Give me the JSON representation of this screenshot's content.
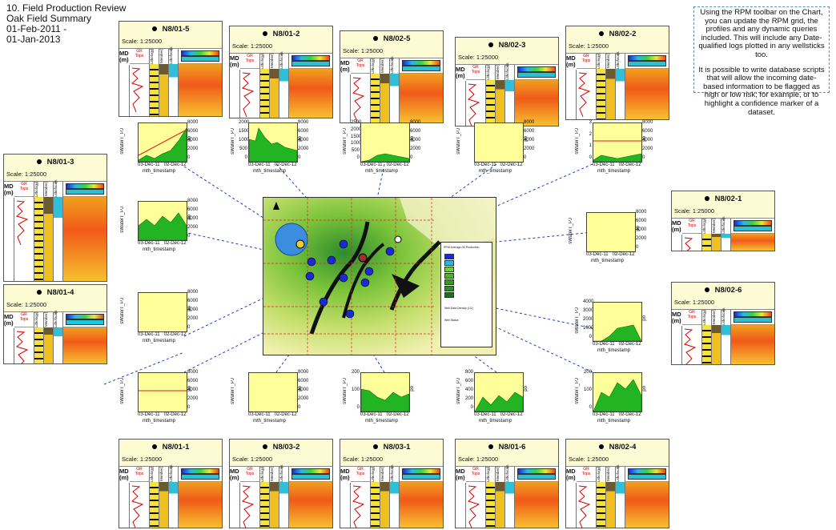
{
  "title": {
    "line1": "10. Field Production Review",
    "line2": "Oak Field Summary",
    "line3": "01-Feb-2011 -",
    "line4": "01-Jan-2013"
  },
  "note": {
    "p1": "Using the RPM toolbar on the Chart, you can update the RPM grid, the profiles and any dynamic queries included.  This will include any Date-qualified logs plotted in any wellsticks too.",
    "p2": "It is possible to write database scripts that will allow the incoming date-based information to be flagged as high or low risk; for example, or to highlight a confidence marker of a dataset."
  },
  "well_labels": {
    "scale": "Scale: 1:25000",
    "md": "MD",
    "m": "(m)",
    "gr": "GR",
    "tops": "Tops",
    "lithology": "Lithology",
    "member": "Member",
    "lithofacies": "Lithofacies",
    "mid_flamingo": "Mid Flamingo"
  },
  "wells": [
    {
      "name": "N8/01-5"
    },
    {
      "name": "N8/01-2"
    },
    {
      "name": "N8/02-5"
    },
    {
      "name": "N8/02-3"
    },
    {
      "name": "N8/02-2"
    },
    {
      "name": "N8/01-3"
    },
    {
      "name": "N8/02-1"
    },
    {
      "name": "N8/01-4"
    },
    {
      "name": "N8/02-6"
    },
    {
      "name": "N8/01-1"
    },
    {
      "name": "N8/03-2"
    },
    {
      "name": "N8/03-1"
    },
    {
      "name": "N8/01-6"
    },
    {
      "name": "N8/02-4"
    }
  ],
  "plot_labels": {
    "ylabel": "sWaterT_PJ",
    "yrlabel": "po",
    "x1": "03-Dec-11",
    "x2": "02-Dec-12",
    "xlabel": "mth_timestamp"
  },
  "plots": [
    {
      "left": "",
      "right_ticks": [
        "8000",
        "6000",
        "4000",
        "2000",
        "0"
      ]
    },
    {
      "left_ticks": [
        "2000",
        "1500",
        "1000",
        "500",
        "0"
      ],
      "right_ticks": [
        "8000",
        "6000",
        "4000",
        "2000",
        "0"
      ]
    },
    {
      "left_ticks": [
        "2500",
        "2000",
        "1500",
        "1000",
        "500",
        "0"
      ],
      "right_ticks": [
        "8000",
        "6000",
        "4000",
        "2000",
        "0"
      ]
    },
    {
      "right_ticks": [
        "8000",
        "6000",
        "4000",
        "2000",
        "0"
      ]
    },
    {
      "left_ticks": [
        "3",
        "2",
        "1",
        "0"
      ],
      "right_ticks": [
        "8000",
        "6000",
        "4000",
        "2000",
        "0"
      ]
    },
    {
      "right_ticks": [
        "8000",
        "6000",
        "4000",
        "2000",
        "0"
      ]
    },
    {
      "right_ticks": [
        "8000",
        "6000",
        "4000",
        "2000",
        "0"
      ]
    },
    {
      "right_ticks": [
        "8000",
        "6000",
        "4000",
        "2000",
        "0"
      ]
    },
    {
      "left_ticks": [
        "4000",
        "3000",
        "2000",
        "1000",
        "0"
      ]
    },
    {
      "right_ticks": [
        "8000",
        "6000",
        "4000",
        "2000",
        "0"
      ]
    },
    {
      "right_ticks": [
        "8000",
        "6000",
        "4000",
        "2000",
        "0"
      ]
    },
    {
      "left_ticks": [
        "200",
        "100",
        "0"
      ],
      "right_ticks": []
    },
    {
      "left_ticks": [
        "800",
        "600",
        "400",
        "200",
        "0"
      ]
    },
    {
      "left_ticks": [
        "200",
        "100",
        "0"
      ]
    }
  ],
  "map": {
    "legend_title": "RPM Average Oil Production",
    "legend_values": [
      "3000",
      "2500",
      "2000",
      "1500",
      "1000",
      "500",
      "0"
    ],
    "legend_risk": "Well Data Density (1/1)",
    "legend_status": "Well Status"
  },
  "colors": {
    "panel_header": "#fdfbd3",
    "plot_bg": "#ffff99",
    "production_fill": "#22b422",
    "lines": "#1f3fbf"
  }
}
